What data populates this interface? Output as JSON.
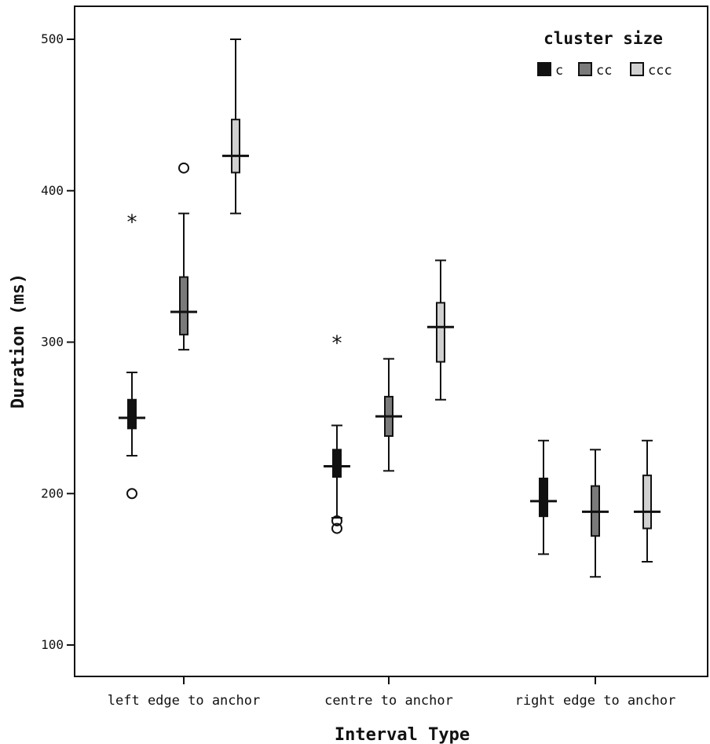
{
  "chart_data": {
    "type": "boxplot",
    "xlabel": "Interval Type",
    "ylabel": "Duration (ms)",
    "ylim": [
      80,
      520
    ],
    "yticks": [
      100,
      200,
      300,
      400,
      500
    ],
    "categories": [
      "left edge to anchor",
      "centre to anchor",
      "right edge to anchor"
    ],
    "legend": {
      "title": "cluster size",
      "position": "top-right",
      "entries": [
        {
          "label": "c",
          "color": "#111111"
        },
        {
          "label": "cc",
          "color": "#7a7a7a"
        },
        {
          "label": "ccc",
          "color": "#d0d0d0"
        }
      ]
    },
    "series": [
      {
        "name": "c",
        "color": "#111111",
        "boxes": [
          {
            "min": 225,
            "q1": 243,
            "median": 250,
            "q3": 262,
            "max": 280,
            "outliers": [
              {
                "value": 200,
                "mark": "o"
              },
              {
                "value": 380,
                "mark": "*"
              }
            ]
          },
          {
            "min": 184,
            "q1": 211,
            "median": 218,
            "q3": 229,
            "max": 245,
            "outliers": [
              {
                "value": 182,
                "mark": "o"
              },
              {
                "value": 177,
                "mark": "o"
              },
              {
                "value": 300,
                "mark": "*"
              }
            ]
          },
          {
            "min": 160,
            "q1": 185,
            "median": 195,
            "q3": 210,
            "max": 235,
            "outliers": []
          }
        ]
      },
      {
        "name": "cc",
        "color": "#7a7a7a",
        "boxes": [
          {
            "min": 295,
            "q1": 305,
            "median": 320,
            "q3": 343,
            "max": 385,
            "outliers": [
              {
                "value": 415,
                "mark": "o"
              }
            ]
          },
          {
            "min": 215,
            "q1": 238,
            "median": 251,
            "q3": 264,
            "max": 289,
            "outliers": []
          },
          {
            "min": 145,
            "q1": 172,
            "median": 188,
            "q3": 205,
            "max": 229,
            "outliers": []
          }
        ]
      },
      {
        "name": "ccc",
        "color": "#d0d0d0",
        "boxes": [
          {
            "min": 385,
            "q1": 412,
            "median": 423,
            "q3": 447,
            "max": 500,
            "outliers": []
          },
          {
            "min": 262,
            "q1": 287,
            "median": 310,
            "q3": 326,
            "max": 354,
            "outliers": []
          },
          {
            "min": 155,
            "q1": 177,
            "median": 188,
            "q3": 212,
            "max": 235,
            "outliers": []
          }
        ]
      }
    ]
  }
}
